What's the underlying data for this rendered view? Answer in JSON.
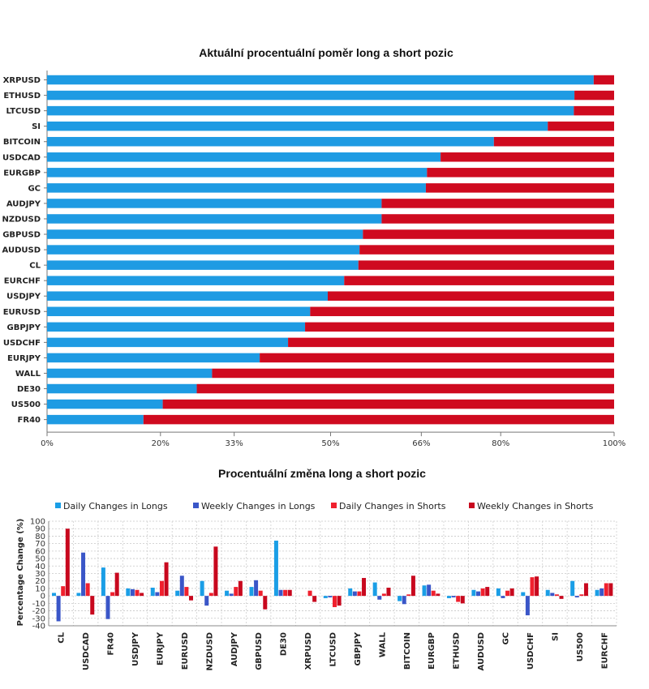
{
  "colors": {
    "long": "#1e9be3",
    "short": "#cf0a1f",
    "daily_longs": "#1a9ee6",
    "weekly_longs": "#3a56c8",
    "daily_shorts": "#f0202e",
    "weekly_shorts": "#c8081e"
  },
  "chart_data": [
    {
      "type": "bar",
      "orientation": "horizontal-stacked",
      "title": "Aktuální procentuální poměr long a short pozic",
      "categories": [
        "XRPUSD",
        "ETHUSD",
        "LTCUSD",
        "SI",
        "BITCOIN",
        "USDCAD",
        "EURGBP",
        "GC",
        "AUDJPY",
        "NZDUSD",
        "GBPUSD",
        "AUDUSD",
        "CL",
        "EURCHF",
        "USDJPY",
        "EURUSD",
        "GBPJPY",
        "USDCHF",
        "EURJPY",
        "WALL",
        "DE30",
        "US500",
        "FR40"
      ],
      "series": [
        {
          "values": [
            96.4,
            93.0,
            92.9,
            88.3,
            78.8,
            69.4,
            67.0,
            66.8,
            59.0,
            59.0,
            55.7,
            55.1,
            54.9,
            52.4,
            49.5,
            46.4,
            45.5,
            42.5,
            37.5,
            29.1,
            26.4,
            20.4,
            17.0
          ]
        },
        {
          "values": [
            3.6,
            7.0,
            7.1,
            11.7,
            21.2,
            30.6,
            33.0,
            33.2,
            41.0,
            41.0,
            44.3,
            44.9,
            45.1,
            47.6,
            50.5,
            53.6,
            54.5,
            57.5,
            62.5,
            70.9,
            73.6,
            79.6,
            83.0
          ]
        }
      ],
      "xlim": [
        0,
        100
      ],
      "xticks": [
        "0%",
        "20%",
        "33%",
        "50%",
        "66%",
        "80%",
        "100%"
      ],
      "xtick_values": [
        0,
        20,
        33,
        50,
        66,
        80,
        100
      ]
    },
    {
      "type": "bar",
      "orientation": "vertical-grouped",
      "title": "Procentuální změna long a short pozic",
      "ylabel": "Percentage Change (%)",
      "ylim": [
        -40,
        100
      ],
      "yticks": [
        100,
        90,
        80,
        70,
        60,
        50,
        40,
        30,
        20,
        10,
        0,
        -10,
        -20,
        -30,
        -40
      ],
      "ytick_labels": [
        "100",
        "90",
        "80",
        "70",
        "60",
        "50",
        "40",
        "30",
        "20",
        "10",
        "0",
        "-10",
        "-20",
        "-30",
        "-40"
      ],
      "grid": true,
      "legend_position": "top",
      "categories": [
        "CL",
        "USDCAD",
        "FR40",
        "USDJPY",
        "EURJPY",
        "EURUSD",
        "NZDUSD",
        "AUDJPY",
        "GBPUSD",
        "DE30",
        "XRPUSD",
        "LTCUSD",
        "GBPJPY",
        "WALL",
        "BITCOIN",
        "EURGBP",
        "ETHUSD",
        "AUDUSD",
        "GC",
        "USDCHF",
        "SI",
        "US500",
        "EURCHF"
      ],
      "series": [
        {
          "name": "Daily Changes in Longs",
          "values": [
            4,
            4,
            38,
            10,
            11,
            7,
            20,
            7,
            12,
            74,
            0,
            -3,
            10,
            18,
            -7,
            14,
            -3,
            8,
            10,
            5,
            8,
            20,
            8
          ]
        },
        {
          "name": "Weekly Changes in Longs",
          "values": [
            -34,
            58,
            -31,
            9,
            5,
            27,
            -13,
            3,
            21,
            8,
            0,
            -2,
            6,
            -5,
            -11,
            15,
            -2,
            6,
            -3,
            -26,
            4,
            -2,
            10
          ]
        },
        {
          "name": "Daily Changes in Shorts",
          "values": [
            13,
            17,
            5,
            8,
            20,
            12,
            4,
            12,
            7,
            8,
            7,
            -15,
            6,
            3,
            2,
            7,
            -8,
            10,
            7,
            25,
            2,
            2,
            17
          ]
        },
        {
          "name": "Weekly Changes in Shorts",
          "values": [
            90,
            -25,
            31,
            4,
            45,
            -6,
            66,
            20,
            -18,
            8,
            -8,
            -13,
            24,
            11,
            27,
            3,
            -10,
            12,
            10,
            26,
            -4,
            17,
            17
          ]
        }
      ]
    }
  ]
}
